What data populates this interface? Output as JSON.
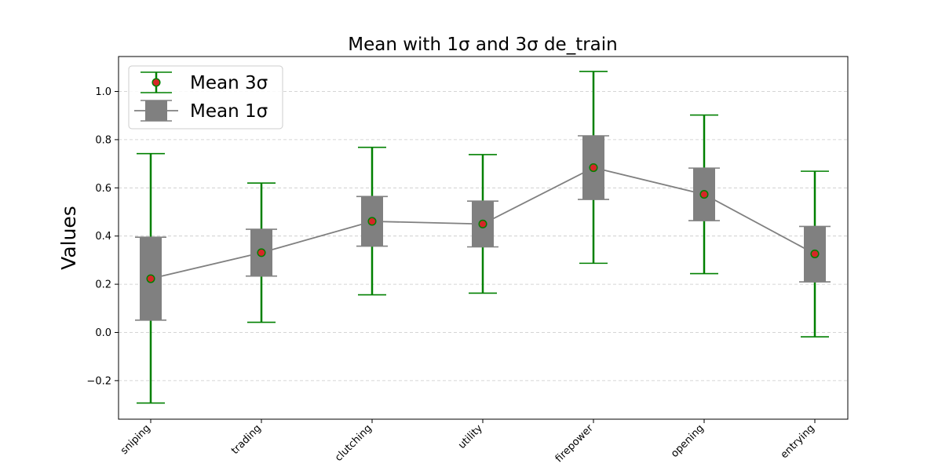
{
  "chart_data": {
    "type": "errorbar",
    "title": "Mean with 1σ and 3σ de_train",
    "xlabel": "",
    "ylabel": "Values",
    "categories": [
      "sniping",
      "trading",
      "clutching",
      "utility",
      "firepower",
      "opening",
      "entrying"
    ],
    "mean": [
      0.223,
      0.331,
      0.461,
      0.45,
      0.684,
      0.573,
      0.326
    ],
    "sigma1": {
      "low": [
        0.051,
        0.234,
        0.358,
        0.355,
        0.552,
        0.464,
        0.21
      ],
      "high": [
        0.395,
        0.428,
        0.564,
        0.545,
        0.816,
        0.682,
        0.44
      ]
    },
    "sigma3": {
      "low": [
        -0.293,
        0.042,
        0.156,
        0.163,
        0.287,
        0.244,
        -0.018
      ],
      "high": [
        0.742,
        0.62,
        0.768,
        0.738,
        1.083,
        0.902,
        0.669
      ]
    },
    "ylim": [
      -0.36,
      1.145
    ],
    "yticks": [
      -0.2,
      0.0,
      0.2,
      0.4,
      0.6,
      0.8,
      1.0
    ],
    "ytick_labels": [
      "−0.2",
      "0.0",
      "0.2",
      "0.4",
      "0.6",
      "0.8",
      "1.0"
    ],
    "grid": "y-dashed",
    "legend": {
      "placement": "top-left",
      "entries": [
        {
          "label": "Mean 3σ",
          "color": "#008000",
          "marker_color": "#d62728"
        },
        {
          "label": "Mean 1σ",
          "color": "#808080"
        }
      ]
    },
    "colors": {
      "sigma3": "#008000",
      "sigma1": "#808080",
      "mean_marker": "#d62728",
      "grid": "#c8c8c8",
      "mean_line": "#808080"
    }
  }
}
